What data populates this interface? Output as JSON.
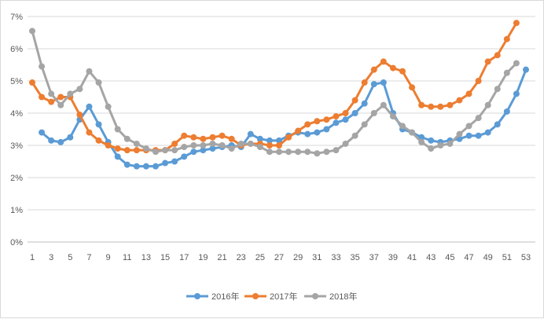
{
  "chart_data": {
    "type": "line",
    "title": "",
    "xlabel": "",
    "ylabel": "",
    "x_ticks": [
      1,
      3,
      5,
      7,
      9,
      11,
      13,
      15,
      17,
      19,
      21,
      23,
      25,
      27,
      29,
      31,
      33,
      35,
      37,
      39,
      41,
      43,
      45,
      47,
      49,
      51,
      53
    ],
    "y_ticks": [
      "0%",
      "1%",
      "2%",
      "3%",
      "4%",
      "5%",
      "6%",
      "7%"
    ],
    "ylim": [
      0,
      7
    ],
    "xlim": [
      1,
      53
    ],
    "grid": true,
    "legend": "bottom",
    "series": [
      {
        "name": "2016年",
        "color": "#5b9bd5",
        "start_week": 2,
        "values": [
          3.4,
          3.15,
          3.1,
          3.25,
          3.8,
          4.2,
          3.65,
          3.1,
          2.65,
          2.4,
          2.35,
          2.35,
          2.35,
          2.45,
          2.5,
          2.65,
          2.8,
          2.85,
          2.9,
          2.95,
          3.0,
          2.95,
          3.35,
          3.2,
          3.15,
          3.15,
          3.3,
          3.4,
          3.35,
          3.4,
          3.5,
          3.7,
          3.8,
          4.0,
          4.3,
          4.9,
          4.95,
          4.0,
          3.5,
          3.4,
          3.25,
          3.15,
          3.1,
          3.15,
          3.2,
          3.3,
          3.3,
          3.4,
          3.65,
          4.05,
          4.6,
          5.35
        ]
      },
      {
        "name": "2017年",
        "color": "#ed7d31",
        "start_week": 1,
        "values": [
          4.95,
          4.5,
          4.35,
          4.5,
          4.5,
          3.95,
          3.4,
          3.15,
          3.0,
          2.9,
          2.85,
          2.85,
          2.85,
          2.85,
          2.85,
          3.05,
          3.3,
          3.25,
          3.2,
          3.25,
          3.3,
          3.2,
          3.0,
          3.05,
          3.05,
          3.0,
          3.0,
          3.25,
          3.45,
          3.65,
          3.75,
          3.8,
          3.9,
          4.0,
          4.4,
          4.95,
          5.35,
          5.6,
          5.4,
          5.3,
          4.8,
          4.25,
          4.2,
          4.2,
          4.25,
          4.4,
          4.6,
          5.0,
          5.6,
          5.8,
          6.3,
          6.8
        ]
      },
      {
        "name": "2018年",
        "color": "#a5a5a5",
        "start_week": 1,
        "values": [
          6.55,
          5.45,
          4.6,
          4.25,
          4.6,
          4.75,
          5.3,
          4.95,
          4.2,
          3.5,
          3.2,
          3.05,
          2.9,
          2.8,
          2.85,
          2.85,
          2.95,
          3.0,
          3.0,
          3.05,
          3.0,
          2.9,
          3.05,
          3.05,
          2.95,
          2.8,
          2.8,
          2.8,
          2.8,
          2.8,
          2.75,
          2.8,
          2.85,
          3.05,
          3.3,
          3.65,
          4.0,
          4.25,
          3.9,
          3.6,
          3.4,
          3.1,
          2.9,
          3.0,
          3.05,
          3.35,
          3.6,
          3.85,
          4.25,
          4.75,
          5.25,
          5.55
        ]
      }
    ]
  }
}
